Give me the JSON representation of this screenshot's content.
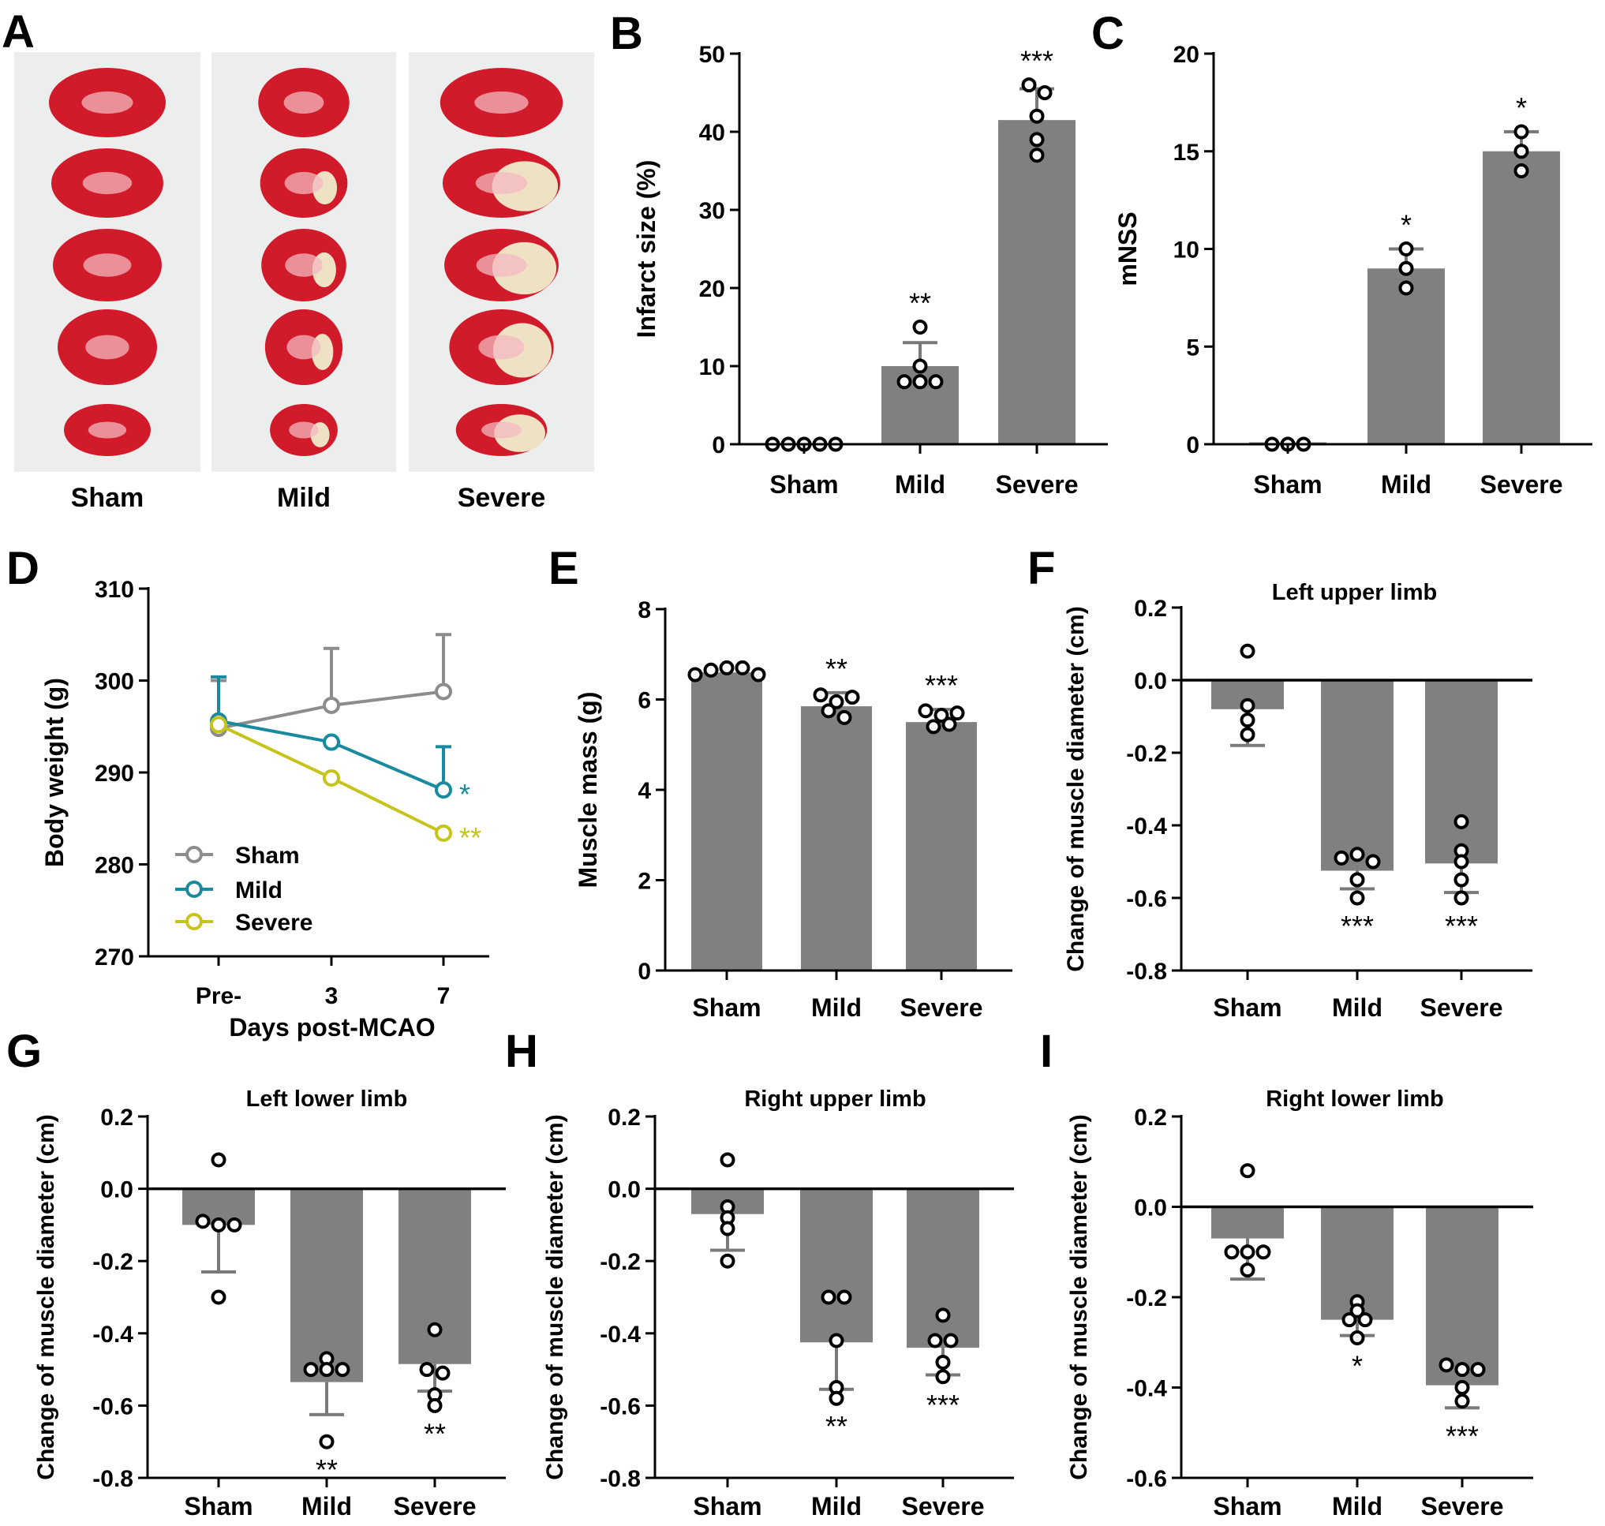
{
  "colors": {
    "bar": "#808080",
    "axis": "#000000",
    "sham_line": "#8c8c8c",
    "mild_line": "#1a8a9e",
    "severe_line": "#c6c41a",
    "mild_star": "#1a8a9e",
    "severe_star": "#c6c41a",
    "tissue_red": "#d11a2a",
    "tissue_pale": "#efe2c4",
    "photo_bg": "#eceeee"
  },
  "panel_a": {
    "letter": "A",
    "groups": [
      "Sham",
      "Mild",
      "Severe"
    ]
  },
  "chart_data": [
    {
      "panel": "B",
      "type": "bar",
      "title": "",
      "categories": [
        "Sham",
        "Mild",
        "Severe"
      ],
      "values": [
        0,
        10,
        41.5
      ],
      "errors": [
        0,
        3,
        4
      ],
      "points": [
        [
          0,
          0,
          0,
          0,
          0
        ],
        [
          15,
          10,
          8,
          8,
          8
        ],
        [
          46,
          45,
          42,
          39,
          37
        ]
      ],
      "significance": [
        "",
        "**",
        "***"
      ],
      "xlabel": "",
      "ylabel": "Infarct size (%)",
      "ylim": [
        0,
        50
      ],
      "yticks": [
        "0",
        "10",
        "20",
        "30",
        "40",
        "50"
      ]
    },
    {
      "panel": "C",
      "type": "bar",
      "title": "",
      "categories": [
        "Sham",
        "Mild",
        "Severe"
      ],
      "values": [
        0.1,
        9,
        15
      ],
      "errors": [
        0,
        1,
        1
      ],
      "points": [
        [
          0,
          0,
          0
        ],
        [
          10,
          9,
          8
        ],
        [
          16,
          15,
          14
        ]
      ],
      "significance": [
        "",
        "*",
        "*"
      ],
      "xlabel": "",
      "ylabel": "mNSS",
      "ylim": [
        0,
        20
      ],
      "yticks": [
        "0",
        "5",
        "10",
        "15",
        "20"
      ]
    },
    {
      "panel": "D",
      "type": "line",
      "title": "",
      "categories": [
        "Pre-",
        "3",
        "7"
      ],
      "series": [
        {
          "name": "Sham",
          "values": [
            294.8,
            297.3,
            298.8
          ],
          "errors": [
            5.2,
            6.2,
            6.2
          ],
          "significance": ""
        },
        {
          "name": "Mild",
          "values": [
            295.6,
            293.3,
            288.1
          ],
          "errors": [
            4.8,
            0,
            4.7
          ],
          "significance": "*"
        },
        {
          "name": "Severe",
          "values": [
            295.2,
            289.4,
            283.4
          ],
          "errors": [
            0,
            0,
            0
          ],
          "significance": "**"
        }
      ],
      "xlabel": "Days post-MCAO",
      "ylabel": "Body weight (g)",
      "ylim": [
        270,
        310
      ],
      "yticks": [
        "270",
        "280",
        "290",
        "300",
        "310"
      ]
    },
    {
      "panel": "E",
      "type": "bar",
      "title": "",
      "categories": [
        "Sham",
        "Mild",
        "Severe"
      ],
      "values": [
        6.6,
        5.85,
        5.5
      ],
      "errors": [
        0,
        0.3,
        0.28
      ],
      "points": [
        [
          6.55,
          6.65,
          6.7,
          6.7,
          6.55
        ],
        [
          6.1,
          5.95,
          6.05,
          5.75,
          5.6
        ],
        [
          5.75,
          5.65,
          5.7,
          5.4,
          5.45
        ]
      ],
      "significance": [
        "",
        "**",
        "***"
      ],
      "xlabel": "",
      "ylabel": "Muscle mass (g)",
      "ylim": [
        0,
        8
      ],
      "yticks": [
        "0",
        "2",
        "4",
        "6",
        "8"
      ]
    },
    {
      "panel": "F",
      "type": "bar",
      "title": "Left upper limb",
      "categories": [
        "Sham",
        "Mild",
        "Severe"
      ],
      "values": [
        -0.08,
        -0.525,
        -0.505
      ],
      "errors": [
        0.1,
        0.05,
        0.08
      ],
      "points": [
        [
          0.08,
          -0.07,
          -0.11,
          -0.15
        ],
        [
          -0.49,
          -0.48,
          -0.5,
          -0.55,
          -0.6
        ],
        [
          -0.39,
          -0.47,
          -0.5,
          -0.55,
          -0.6
        ]
      ],
      "significance": [
        "",
        "***",
        "***"
      ],
      "xlabel": "",
      "ylabel": "Change of muscle diameter (cm)",
      "ylim": [
        -0.8,
        0.2
      ],
      "yticks": [
        "-0.8",
        "-0.6",
        "-0.4",
        "-0.2",
        "0.0",
        "0.2"
      ]
    },
    {
      "panel": "G",
      "type": "bar",
      "title": "Left lower limb",
      "categories": [
        "Sham",
        "Mild",
        "Severe"
      ],
      "values": [
        -0.1,
        -0.535,
        -0.485
      ],
      "errors": [
        0.13,
        0.09,
        0.075
      ],
      "points": [
        [
          0.08,
          -0.09,
          -0.1,
          -0.1,
          -0.3
        ],
        [
          -0.47,
          -0.5,
          -0.5,
          -0.5,
          -0.7
        ],
        [
          -0.39,
          -0.5,
          -0.51,
          -0.57,
          -0.6
        ]
      ],
      "significance": [
        "",
        "**",
        "**"
      ],
      "xlabel": "",
      "ylabel": "Change of muscle diameter (cm)",
      "ylim": [
        -0.8,
        0.2
      ],
      "yticks": [
        "-0.8",
        "-0.6",
        "-0.4",
        "-0.2",
        "0.0",
        "0.2"
      ]
    },
    {
      "panel": "H",
      "type": "bar",
      "title": "Right upper limb",
      "categories": [
        "Sham",
        "Mild",
        "Severe"
      ],
      "values": [
        -0.07,
        -0.425,
        -0.44
      ],
      "errors": [
        0.1,
        0.13,
        0.075
      ],
      "points": [
        [
          0.08,
          -0.05,
          -0.08,
          -0.11,
          -0.2
        ],
        [
          -0.3,
          -0.3,
          -0.42,
          -0.55,
          -0.58
        ],
        [
          -0.35,
          -0.42,
          -0.42,
          -0.48,
          -0.52
        ]
      ],
      "significance": [
        "",
        "**",
        "***"
      ],
      "xlabel": "",
      "ylabel": "Change of muscle diameter (cm)",
      "ylim": [
        -0.8,
        0.2
      ],
      "yticks": [
        "-0.8",
        "-0.6",
        "-0.4",
        "-0.2",
        "0.0",
        "0.2"
      ]
    },
    {
      "panel": "I",
      "type": "bar",
      "title": "Right lower limb",
      "categories": [
        "Sham",
        "Mild",
        "Severe"
      ],
      "values": [
        -0.07,
        -0.25,
        -0.395
      ],
      "errors": [
        0.09,
        0.035,
        0.05
      ],
      "points": [
        [
          0.08,
          -0.1,
          -0.1,
          -0.1,
          -0.14
        ],
        [
          -0.21,
          -0.23,
          -0.25,
          -0.25,
          -0.29
        ],
        [
          -0.35,
          -0.36,
          -0.36,
          -0.4,
          -0.43
        ]
      ],
      "significance": [
        "",
        "*",
        "***"
      ],
      "xlabel": "",
      "ylabel": "Change of muscle diameter (cm)",
      "ylim": [
        -0.6,
        0.2
      ],
      "yticks": [
        "-0.6",
        "-0.4",
        "-0.2",
        "0.0",
        "0.2"
      ]
    }
  ]
}
